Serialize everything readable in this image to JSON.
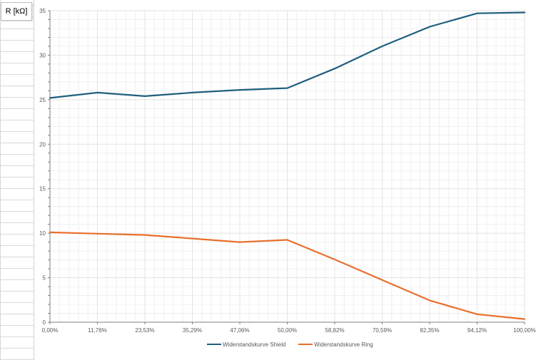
{
  "chart_data": {
    "type": "line",
    "title": "",
    "ylabel": "R [kΩ]",
    "xlabel": "",
    "categories": [
      "0,00%",
      "11,76%",
      "23,53%",
      "35,29%",
      "47,06%",
      "50,00%",
      "58,82%",
      "70,59%",
      "82,35%",
      "94,12%",
      "100,00%"
    ],
    "y_ticks": [
      "0",
      "5",
      "10",
      "15",
      "20",
      "25",
      "30",
      "35"
    ],
    "ylim": [
      0,
      35
    ],
    "grid": true,
    "legend_position": "bottom",
    "series": [
      {
        "name": "Widerstandskurve Shield",
        "color": "#1f5f7f",
        "values": [
          25.2,
          25.8,
          25.4,
          25.8,
          26.1,
          26.3,
          28.5,
          31.0,
          33.2,
          34.7,
          34.8
        ]
      },
      {
        "name": "Widerstandskurve Ring",
        "color": "#e86f2c",
        "values": [
          10.1,
          9.95,
          9.8,
          9.4,
          9.0,
          9.25,
          7.05,
          4.75,
          2.45,
          0.9,
          0.35
        ]
      }
    ]
  }
}
